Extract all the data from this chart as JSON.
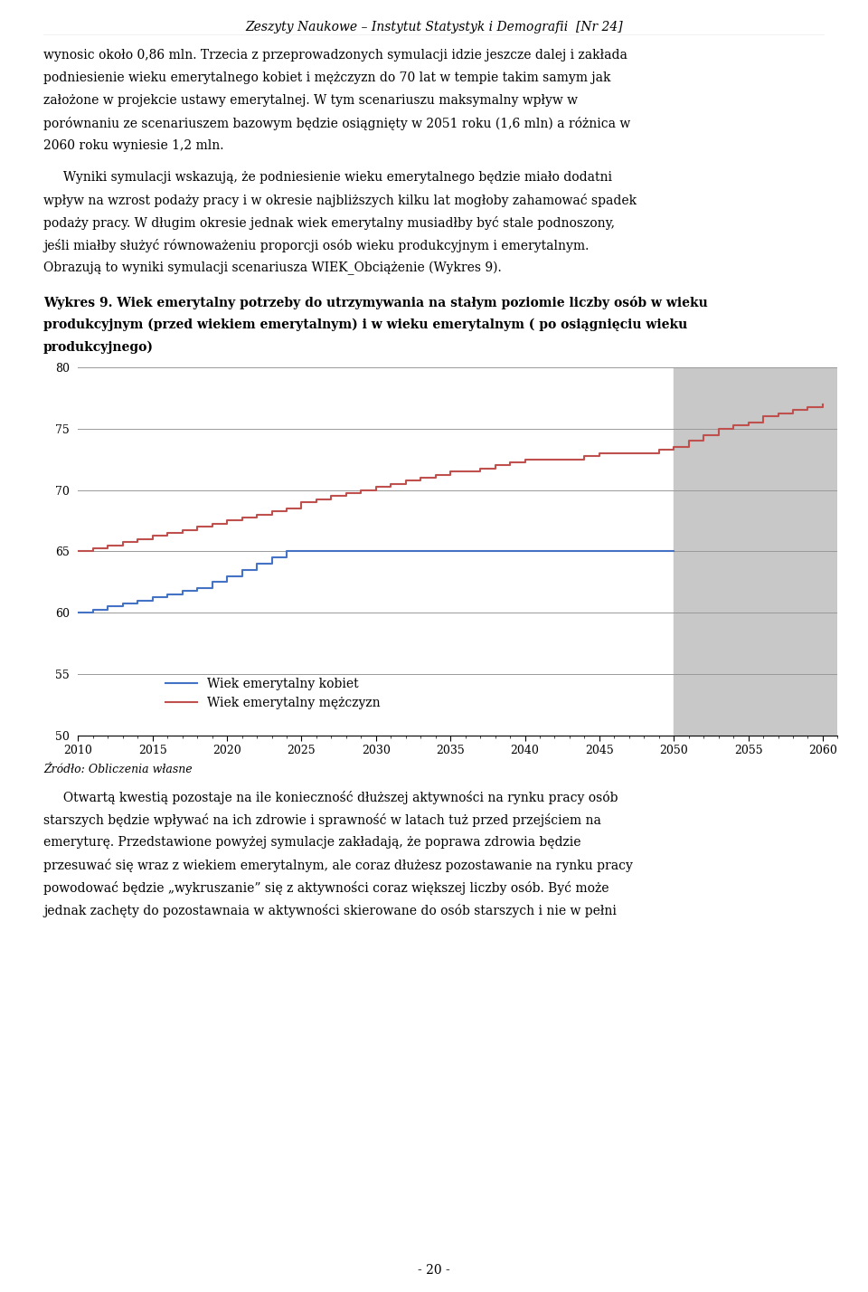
{
  "header": "Zeszyty Naukowe – Instytut Statystyk i Demografii  [Nr 24]",
  "source_text": "Źródło: Obliczenia własne",
  "legend_kobiet": "Wiek emerytalny kobiet",
  "legend_mezczyzn": "Wiek emerytalny mężczyzn",
  "ylim": [
    50,
    80
  ],
  "xlim_start": 2010,
  "xlim_end": 2061,
  "yticks": [
    50,
    55,
    60,
    65,
    70,
    75,
    80
  ],
  "xticks": [
    2010,
    2015,
    2020,
    2025,
    2030,
    2035,
    2040,
    2045,
    2050,
    2055,
    2060
  ],
  "shaded_start": 2050,
  "shaded_end": 2061,
  "shaded_color": "#c8c8c8",
  "color_kobiet": "#4472c4",
  "color_mezczyzn": "#c0504d",
  "years_kobiet": [
    2010,
    2011,
    2012,
    2013,
    2014,
    2015,
    2016,
    2017,
    2018,
    2019,
    2020,
    2021,
    2022,
    2023,
    2024,
    2025,
    2026,
    2027,
    2028,
    2029,
    2030,
    2031,
    2032,
    2033,
    2034,
    2035,
    2036,
    2037,
    2038,
    2039,
    2040,
    2041,
    2042,
    2043,
    2044,
    2045,
    2046,
    2047,
    2048,
    2049,
    2050
  ],
  "values_kobiet": [
    60,
    60.25,
    60.5,
    60.75,
    61,
    61.25,
    61.5,
    61.75,
    62,
    62.5,
    63,
    63.5,
    64,
    64.5,
    65,
    65,
    65,
    65,
    65,
    65,
    65,
    65,
    65,
    65,
    65,
    65,
    65,
    65,
    65,
    65,
    65,
    65,
    65,
    65,
    65,
    65,
    65,
    65,
    65,
    65,
    65
  ],
  "years_mezczyzn": [
    2010,
    2011,
    2012,
    2013,
    2014,
    2015,
    2016,
    2017,
    2018,
    2019,
    2020,
    2021,
    2022,
    2023,
    2024,
    2025,
    2026,
    2027,
    2028,
    2029,
    2030,
    2031,
    2032,
    2033,
    2034,
    2035,
    2036,
    2037,
    2038,
    2039,
    2040,
    2041,
    2042,
    2043,
    2044,
    2045,
    2046,
    2047,
    2048,
    2049,
    2050,
    2051,
    2052,
    2053,
    2054,
    2055,
    2056,
    2057,
    2058,
    2059,
    2060
  ],
  "values_mezczyzn": [
    65,
    65.25,
    65.5,
    65.75,
    66,
    66.25,
    66.5,
    66.75,
    67,
    67.25,
    67.5,
    67.75,
    68,
    68.25,
    68.5,
    69,
    69.25,
    69.5,
    69.75,
    70,
    70.25,
    70.5,
    70.75,
    71,
    71.25,
    71.5,
    71.5,
    71.75,
    72,
    72.25,
    72.5,
    72.5,
    72.5,
    72.5,
    72.75,
    73,
    73,
    73,
    73,
    73.25,
    73.5,
    74.0,
    74.5,
    75.0,
    75.25,
    75.5,
    76.0,
    76.25,
    76.5,
    76.75,
    77.0
  ],
  "para1_lines": [
    "wynosic około 0,86 mln. Trzecia z przeprowadzonych symulacji idzie jeszcze dalej i zakłada",
    "podniesienie wieku emerytalnego kobiet i mężczyzn do 70 lat w tempie takim samym jak",
    "założone w projekcie ustawy emerytalnej. W tym scenariuszu maksymalny wpływ w",
    "porównaniu ze scenariuszem bazowym będzie osiągnięty w 2051 roku (1,6 mln) a różnica w",
    "2060 roku wyniesie 1,2 mln."
  ],
  "para2_lines": [
    "     Wyniki symulacji wskazują, że podniesienie wieku emerytalnego będzie miało dodatni",
    "wpływ na wzrost podaży pracy i w okresie najbliższych kilku lat mogłoby zahamować spadek",
    "podaży pracy. W długim okresie jednak wiek emerytalny musiadłby być stale podnoszony,",
    "jeśli miałby służyć równoważeniu proporcji osób wieku produkcyjnym i emerytalnym.",
    "Obrazują to wyniki symulacji scenariusza WIEK_Obciążenie (Wykres 9)."
  ],
  "chart_title_lines": [
    "Wykres 9. Wiek emerytalny potrzeby do utrzymywania na stałym poziomie liczby osób w wieku",
    "produkcyjnym (przed wiekiem emerytalnym) i w wieku emerytalnym ( po osiągnięciu wieku",
    "produkcyjnego)"
  ],
  "para3_lines": [
    "     Otwartą kwestią pozostaje na ile konieczność dłuższej aktywności na rynku pracy osób",
    "starszych będzie wpływać na ich zdrowie i sprawność w latach tuż przed przejściem na",
    "emeryturę. Przedstawione powyżej symulacje zakładają, że poprawa zdrowia będzie",
    "przesuwać się wraz z wiekiem emerytalnym, ale coraz dłużesz pozostawanie na rynku pracy",
    "powodować będzie „wykruszanie” się z aktywności coraz większej liczby osób. Być może",
    "jednak zachęty do pozostawnaia w aktywności skierowane do osób starszych i nie w pełni"
  ],
  "footer": "- 20 -"
}
